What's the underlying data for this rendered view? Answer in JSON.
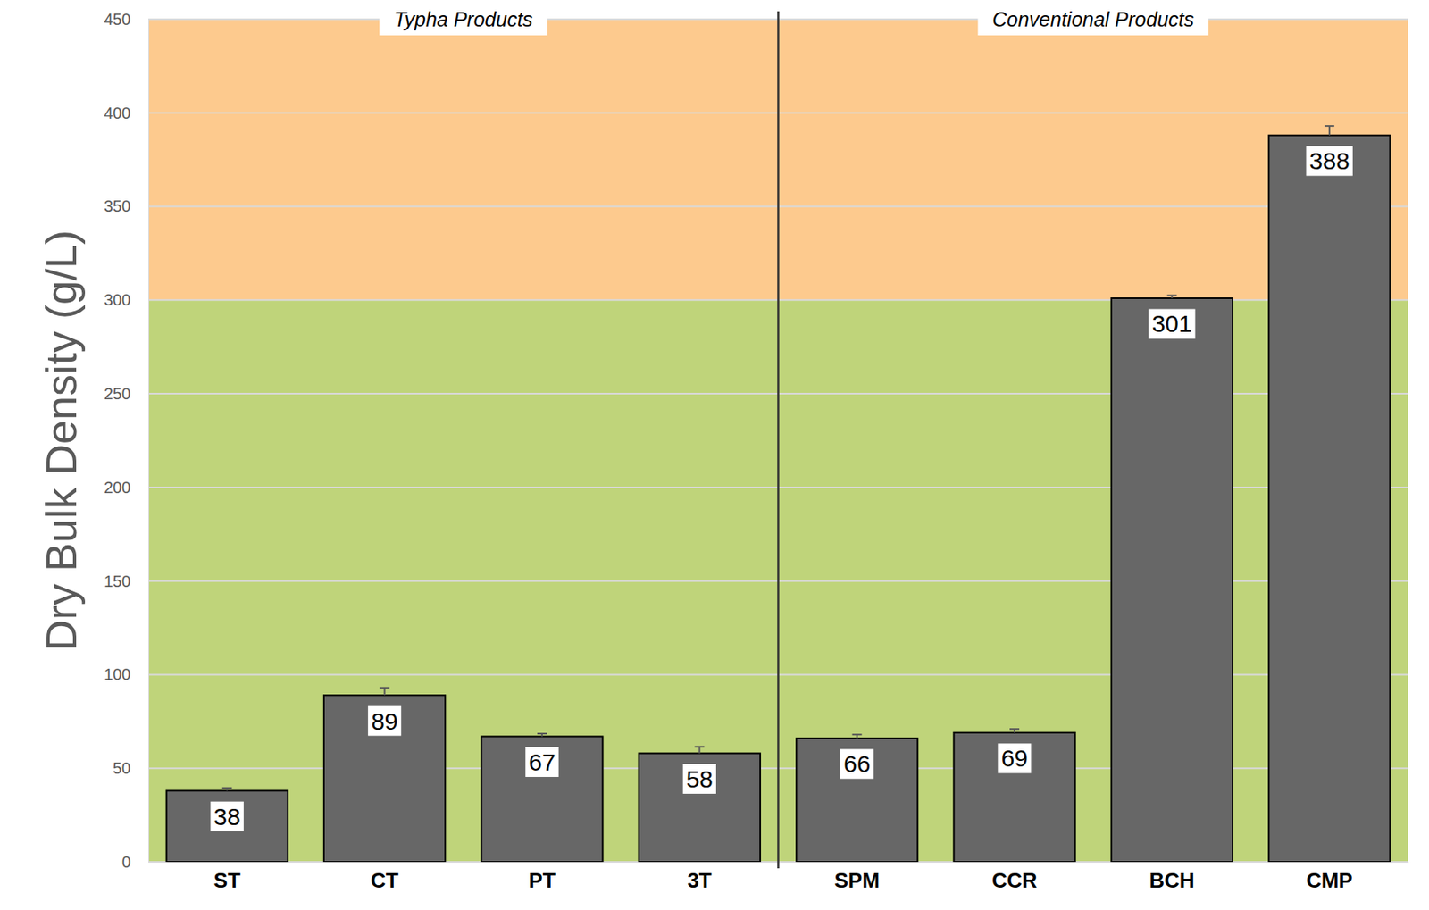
{
  "chart_data": {
    "type": "bar",
    "y_label": "Dry Bulk Density (g/L)",
    "categories": [
      "ST",
      "CT",
      "PT",
      "3T",
      "SPM",
      "CCR",
      "BCH",
      "CMP"
    ],
    "values": [
      38,
      89,
      67,
      58,
      66,
      69,
      301,
      388
    ],
    "errors": [
      1.5,
      4,
      1.5,
      3.5,
      2,
      2,
      1.5,
      5
    ],
    "color": "#676767",
    "ylim": [
      0,
      450
    ],
    "yticks": [
      0,
      50,
      100,
      150,
      200,
      250,
      300,
      350,
      400,
      450
    ],
    "grid": true,
    "data_labels": true,
    "bands": [
      {
        "from": 0,
        "to": 300,
        "color": "#bfd47a"
      },
      {
        "from": 300,
        "to": 450,
        "color": "#fdca8e"
      }
    ],
    "groups": [
      {
        "name": "Typha Products",
        "count": 4
      },
      {
        "name": "Conventional Products",
        "count": 4
      }
    ]
  }
}
